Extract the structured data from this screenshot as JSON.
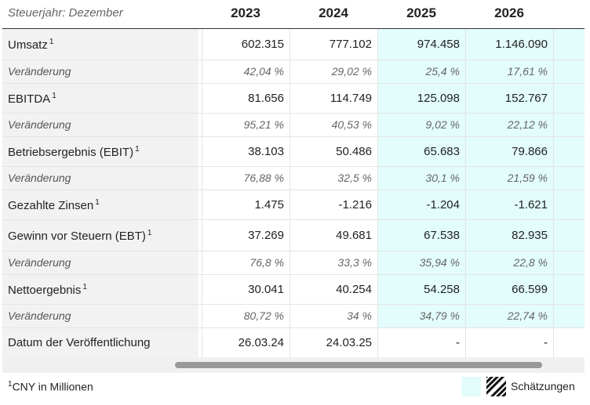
{
  "header": {
    "label": "Steuerjahr: Dezember",
    "years": [
      "2023",
      "2024",
      "2025",
      "2026"
    ]
  },
  "rows": [
    {
      "label": "Umsatz",
      "sup": "1",
      "values": [
        "602.315",
        "777.102",
        "974.458",
        "1.146.090"
      ],
      "sub": false
    },
    {
      "label": "Veränderung",
      "sup": "",
      "values": [
        "42,04 %",
        "29,02 %",
        "25,4 %",
        "17,61 %"
      ],
      "sub": true
    },
    {
      "label": "EBITDA",
      "sup": "1",
      "values": [
        "81.656",
        "114.749",
        "125.098",
        "152.767"
      ],
      "sub": false
    },
    {
      "label": "Veränderung",
      "sup": "",
      "values": [
        "95,21 %",
        "40,53 %",
        "9,02 %",
        "22,12 %"
      ],
      "sub": true
    },
    {
      "label": "Betriebsergebnis (EBIT)",
      "sup": "1",
      "values": [
        "38.103",
        "50.486",
        "65.683",
        "79.866"
      ],
      "sub": false
    },
    {
      "label": "Veränderung",
      "sup": "",
      "values": [
        "76,88 %",
        "32,5 %",
        "30,1 %",
        "21,59 %"
      ],
      "sub": true
    },
    {
      "label": "Gezahlte Zinsen",
      "sup": "1",
      "values": [
        "1.475",
        "-1.216",
        "-1.204",
        "-1.621"
      ],
      "sub": false
    },
    {
      "label": "Gewinn vor Steuern (EBT)",
      "sup": "1",
      "values": [
        "37.269",
        "49.681",
        "67.538",
        "82.935"
      ],
      "sub": false
    },
    {
      "label": "Veränderung",
      "sup": "",
      "values": [
        "76,8 %",
        "33,3 %",
        "35,94 %",
        "22,8 %"
      ],
      "sub": true
    },
    {
      "label": "Nettoergebnis",
      "sup": "1",
      "values": [
        "30.041",
        "40.254",
        "54.258",
        "66.599"
      ],
      "sub": false
    },
    {
      "label": "Veränderung",
      "sup": "",
      "values": [
        "80,72 %",
        "34 %",
        "34,79 %",
        "22,74 %"
      ],
      "sub": true
    },
    {
      "label": "Datum der Veröffentlichung",
      "sup": "",
      "values": [
        "26.03.24",
        "24.03.25",
        "-",
        "-"
      ],
      "sub": false,
      "date": true
    }
  ],
  "footnote": {
    "sup": "1",
    "text": "CNY in Millionen"
  },
  "legend": {
    "estimates_label": "Schätzungen"
  },
  "colors": {
    "estimate_bg": "#e3fcfc",
    "label_bg": "#f2f2f2"
  }
}
